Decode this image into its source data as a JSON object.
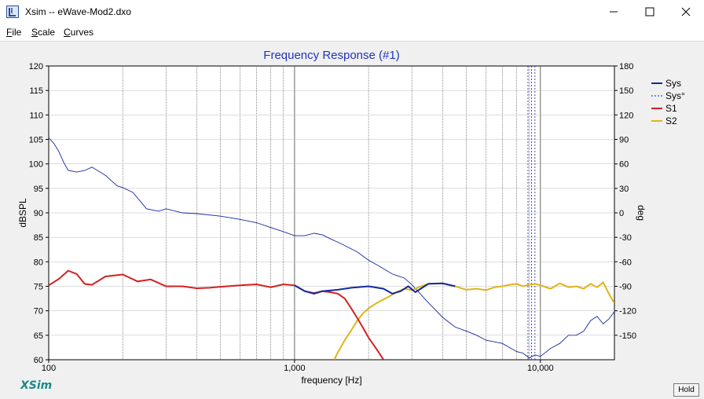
{
  "window": {
    "title": "Xsim -- eWave-Mod2.dxo"
  },
  "menu": {
    "items": [
      {
        "label": "File",
        "accel": "F",
        "rest": "ile"
      },
      {
        "label": "Scale",
        "accel": "S",
        "rest": "cale"
      },
      {
        "label": "Curves",
        "accel": "C",
        "rest": "urves"
      }
    ]
  },
  "footer": {
    "logo": "XSim",
    "hold_label": "Hold"
  },
  "colors": {
    "sys": "#1428a0",
    "sys_phase": "#1428a0",
    "s1": "#d42020",
    "s2": "#e0b418",
    "title": "#2233bb",
    "grid": "#444444"
  },
  "chart_data": {
    "type": "line",
    "title": "Frequency Response (#1)",
    "xlabel": "frequency [Hz]",
    "ylabel": "dBSPL",
    "y2label": "deg",
    "xscale": "log",
    "xlim": [
      100,
      20000
    ],
    "ylim": [
      60,
      120
    ],
    "y2lim": [
      -180,
      180
    ],
    "xticks": [
      {
        "value": 100,
        "label": "100"
      },
      {
        "value": 1000,
        "label": "1,000"
      },
      {
        "value": 10000,
        "label": "10,000"
      }
    ],
    "yticks": [
      "120",
      "115",
      "110",
      "105",
      "100",
      "95",
      "90",
      "85",
      "80",
      "75",
      "70",
      "65",
      "60"
    ],
    "y2ticks": [
      "180",
      "150",
      "120",
      "90",
      "60",
      "30",
      "0",
      "-30",
      "-60",
      "-90",
      "-120",
      "-150"
    ],
    "grid": true,
    "legend_position": "top-right",
    "legend": [
      {
        "name": "Sys",
        "style": "solid"
      },
      {
        "name": "Sys°",
        "style": "dashed"
      },
      {
        "name": "S1",
        "style": "solid"
      },
      {
        "name": "S2",
        "style": "solid"
      }
    ],
    "series": [
      {
        "name": "Sys",
        "axis": "left",
        "x": [
          100,
          110,
          120,
          130,
          140,
          150,
          170,
          200,
          230,
          260,
          300,
          350,
          400,
          450,
          500,
          600,
          700,
          800,
          900,
          1000,
          1100,
          1200,
          1300,
          1500,
          1700,
          2000,
          2300,
          2500,
          2700,
          2900,
          3100,
          3500,
          4000,
          4500,
          5000,
          5500,
          6000,
          6500,
          7000,
          7500,
          8000,
          8500,
          9000,
          9500,
          10000,
          11000,
          12000,
          13000,
          14000,
          15000,
          16000,
          17000,
          18000,
          19000,
          20000
        ],
        "y": [
          75.2,
          76.5,
          78.2,
          77.5,
          75.5,
          75.3,
          77,
          77.4,
          76,
          76.4,
          75,
          75,
          74.6,
          74.7,
          74.9,
          75.2,
          75.4,
          74.8,
          75.4,
          75.2,
          74,
          73.5,
          74,
          74.3,
          74.7,
          75,
          74.5,
          73.5,
          74,
          75,
          73.8,
          75.5,
          75.6,
          75,
          74.3,
          74.5,
          74.2,
          74.8,
          75,
          75.3,
          75.5,
          75,
          75.3,
          75.5,
          75.2,
          74.5,
          75.6,
          74.8,
          75,
          74.5,
          75.5,
          74.8,
          75.8,
          73.5,
          71.5
        ]
      },
      {
        "name": "Sys°",
        "axis": "right",
        "x": [
          100,
          105,
          110,
          115,
          120,
          130,
          140,
          150,
          170,
          190,
          200,
          220,
          250,
          280,
          300,
          350,
          400,
          500,
          600,
          700,
          800,
          900,
          1000,
          1100,
          1200,
          1300,
          1400,
          1500,
          1600,
          1800,
          2000,
          2200,
          2500,
          2800,
          3000,
          3500,
          4000,
          4500,
          5000,
          5500,
          6000,
          7000,
          8000,
          8500,
          9000,
          9500,
          10000,
          11000,
          12000,
          13000,
          14000,
          15000,
          16000,
          17000,
          18000,
          19000,
          20000
        ],
        "y": [
          92,
          85,
          75,
          62,
          52,
          50,
          52,
          56,
          46,
          33,
          31,
          25,
          5,
          2,
          5,
          0,
          -1,
          -4,
          -8,
          -12,
          -18,
          -23,
          -28,
          -28,
          -25,
          -27,
          -32,
          -36,
          -40,
          -48,
          -58,
          -65,
          -75,
          -80,
          -88,
          -110,
          -128,
          -140,
          -145,
          -150,
          -156,
          -160,
          -170,
          -172,
          -178,
          -174,
          -176,
          -166,
          -160,
          -150,
          -150,
          -145,
          -132,
          -127,
          -136,
          -130,
          -121
        ]
      },
      {
        "name": "S1",
        "axis": "left",
        "x": [
          100,
          110,
          120,
          130,
          140,
          150,
          170,
          200,
          230,
          260,
          300,
          350,
          400,
          450,
          500,
          600,
          700,
          800,
          900,
          1000,
          1100,
          1200,
          1300,
          1400,
          1500,
          1600,
          1700,
          1800,
          1900,
          2000,
          2100,
          2200,
          2300
        ],
        "y": [
          75.2,
          76.5,
          78.2,
          77.5,
          75.5,
          75.3,
          77,
          77.4,
          76,
          76.4,
          75,
          75,
          74.6,
          74.7,
          74.9,
          75.2,
          75.4,
          74.8,
          75.4,
          75.2,
          74,
          73.6,
          74,
          73.8,
          73.5,
          72.5,
          70.5,
          68.5,
          66.5,
          64.5,
          63,
          61.5,
          60
        ]
      },
      {
        "name": "S2",
        "axis": "left",
        "x": [
          1450,
          1500,
          1600,
          1700,
          1800,
          1900,
          2000,
          2100,
          2200,
          2400,
          2600,
          2800,
          3000,
          3200,
          3500,
          4000,
          4500,
          5000,
          5500,
          6000,
          6500,
          7000,
          7500,
          8000,
          8500,
          9000,
          9500,
          10000,
          11000,
          12000,
          13000,
          14000,
          15000,
          16000,
          17000,
          18000,
          19000,
          20000
        ],
        "y": [
          60,
          61.5,
          64,
          66,
          68,
          69.5,
          70.5,
          71.2,
          71.8,
          72.8,
          73.8,
          74.5,
          74.2,
          74.8,
          75.5,
          75.6,
          75,
          74.3,
          74.5,
          74.2,
          74.8,
          75,
          75.3,
          75.5,
          75,
          75.3,
          75.5,
          75.2,
          74.5,
          75.6,
          74.8,
          75,
          74.5,
          75.5,
          74.8,
          75.8,
          73.5,
          71.5
        ]
      }
    ]
  }
}
